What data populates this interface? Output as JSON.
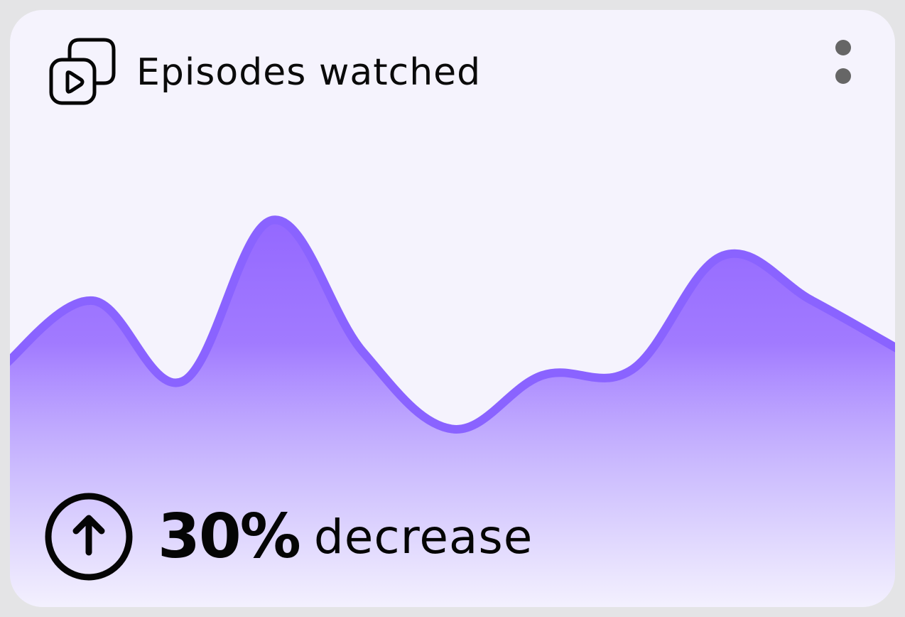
{
  "card": {
    "title": "Episodes watched",
    "icon": "video-play-stack-icon",
    "menu_icon": "more-vertical-icon"
  },
  "stat": {
    "value": "30%",
    "label": "decrease",
    "icon": "arrow-up-circle-icon"
  },
  "colors": {
    "accent": "#8a63ff",
    "fill_top": "#9b6cff",
    "background": "#f5f3fd"
  },
  "chart_data": {
    "type": "area",
    "x": [
      0,
      1,
      2,
      3,
      4,
      5,
      6,
      7,
      8,
      9,
      10
    ],
    "values": [
      33,
      55,
      28,
      82,
      38,
      12,
      30,
      32,
      70,
      55,
      38
    ],
    "ylim": [
      0,
      100
    ],
    "grid": false,
    "axes": false,
    "legend": "none"
  }
}
